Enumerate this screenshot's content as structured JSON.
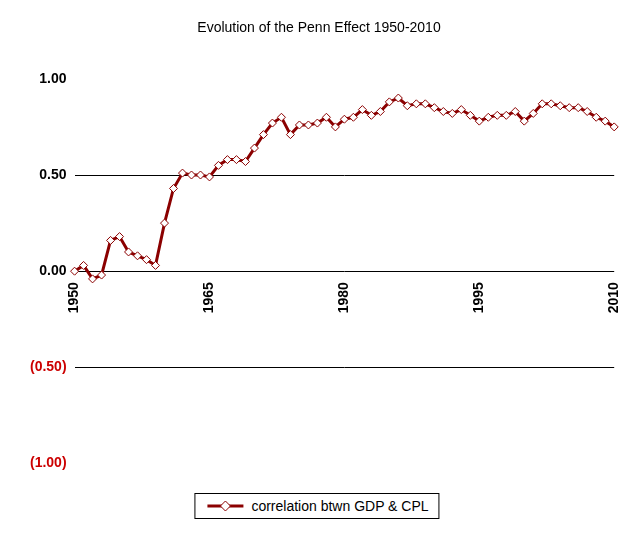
{
  "chart_data": {
    "type": "line",
    "title": "Evolution of the Penn Effect 1950-2010",
    "x": [
      1950,
      1951,
      1952,
      1953,
      1954,
      1955,
      1956,
      1957,
      1958,
      1959,
      1960,
      1961,
      1962,
      1963,
      1964,
      1965,
      1966,
      1967,
      1968,
      1969,
      1970,
      1971,
      1972,
      1973,
      1974,
      1975,
      1976,
      1977,
      1978,
      1979,
      1980,
      1981,
      1982,
      1983,
      1984,
      1985,
      1986,
      1987,
      1988,
      1989,
      1990,
      1991,
      1992,
      1993,
      1994,
      1995,
      1996,
      1997,
      1998,
      1999,
      2000,
      2001,
      2002,
      2003,
      2004,
      2005,
      2006,
      2007,
      2008,
      2009,
      2010
    ],
    "series": [
      {
        "name": "correlation btwn GDP & CPL",
        "color": "#8b0000",
        "marker": "diamond",
        "line_style": "solid",
        "values": [
          0.0,
          0.03,
          -0.04,
          -0.02,
          0.16,
          0.18,
          0.1,
          0.08,
          0.06,
          0.03,
          0.25,
          0.43,
          0.51,
          0.5,
          0.5,
          0.49,
          0.55,
          0.58,
          0.58,
          0.57,
          0.64,
          0.71,
          0.77,
          0.8,
          0.71,
          0.76,
          0.76,
          0.77,
          0.8,
          0.75,
          0.79,
          0.8,
          0.84,
          0.81,
          0.83,
          0.88,
          0.9,
          0.86,
          0.87,
          0.87,
          0.85,
          0.83,
          0.82,
          0.84,
          0.81,
          0.78,
          0.8,
          0.81,
          0.81,
          0.83,
          0.78,
          0.82,
          0.87,
          0.87,
          0.86,
          0.85,
          0.85,
          0.83,
          0.8,
          0.78,
          0.75
        ]
      }
    ],
    "xlim": [
      1950,
      2010
    ],
    "xticks": [
      1950,
      1965,
      1980,
      1995,
      2010
    ],
    "ylim": [
      -1,
      1
    ],
    "yticks": [
      {
        "value": -1,
        "label": "(1.00)"
      },
      {
        "value": -0.5,
        "label": "(0.50)"
      },
      {
        "value": 0,
        "label": "0.00"
      },
      {
        "value": 0.5,
        "label": "0.50"
      },
      {
        "value": 1,
        "label": "1.00"
      }
    ],
    "grid": true,
    "legend": "bottom"
  }
}
